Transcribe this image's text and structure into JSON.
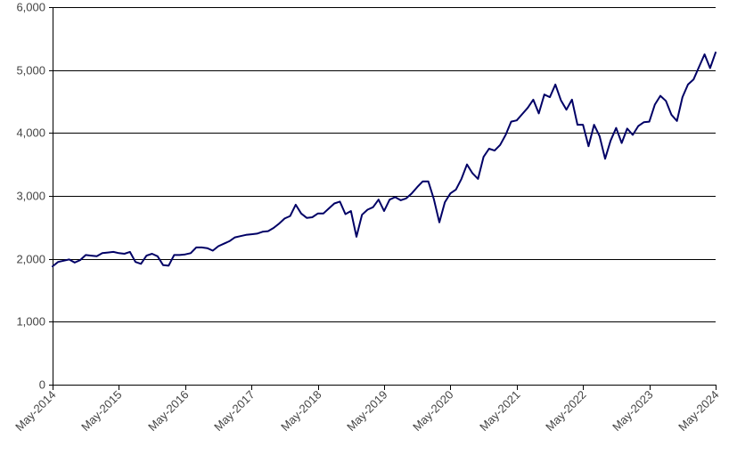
{
  "chart_data": {
    "type": "line",
    "title": "",
    "xlabel": "",
    "ylabel": "",
    "ylim": [
      0,
      6000
    ],
    "yticks": [
      0,
      1000,
      2000,
      3000,
      4000,
      5000,
      6000
    ],
    "ytick_labels": [
      "0",
      "1,000",
      "2,000",
      "3,000",
      "4,000",
      "5,000",
      "6,000"
    ],
    "xlim": [
      "2014-05",
      "2024-05"
    ],
    "xtick_labels": [
      "May-2014",
      "May-2015",
      "May-2016",
      "May-2017",
      "May-2018",
      "May-2019",
      "May-2020",
      "May-2021",
      "May-2022",
      "May-2023",
      "May-2024"
    ],
    "grid": "horizontal",
    "legend": "none",
    "colors": {
      "series": "#000066",
      "grid": "#000000"
    },
    "series": [
      {
        "x": [
          "2014-05",
          "2014-06",
          "2014-07",
          "2014-08",
          "2014-09",
          "2014-10",
          "2014-11",
          "2014-12",
          "2015-01",
          "2015-02",
          "2015-03",
          "2015-04",
          "2015-05",
          "2015-06",
          "2015-07",
          "2015-08",
          "2015-09",
          "2015-10",
          "2015-11",
          "2015-12",
          "2016-01",
          "2016-02",
          "2016-03",
          "2016-04",
          "2016-05",
          "2016-06",
          "2016-07",
          "2016-08",
          "2016-09",
          "2016-10",
          "2016-11",
          "2016-12",
          "2017-01",
          "2017-02",
          "2017-03",
          "2017-04",
          "2017-05",
          "2017-06",
          "2017-07",
          "2017-08",
          "2017-09",
          "2017-10",
          "2017-11",
          "2017-12",
          "2018-01",
          "2018-02",
          "2018-03",
          "2018-04",
          "2018-05",
          "2018-06",
          "2018-07",
          "2018-08",
          "2018-09",
          "2018-10",
          "2018-11",
          "2018-12",
          "2019-01",
          "2019-02",
          "2019-03",
          "2019-04",
          "2019-05",
          "2019-06",
          "2019-07",
          "2019-08",
          "2019-09",
          "2019-10",
          "2019-11",
          "2019-12",
          "2020-01",
          "2020-02",
          "2020-03",
          "2020-04",
          "2020-05",
          "2020-06",
          "2020-07",
          "2020-08",
          "2020-09",
          "2020-10",
          "2020-11",
          "2020-12",
          "2021-01",
          "2021-02",
          "2021-03",
          "2021-04",
          "2021-05",
          "2021-06",
          "2021-07",
          "2021-08",
          "2021-09",
          "2021-10",
          "2021-11",
          "2021-12",
          "2022-01",
          "2022-02",
          "2022-03",
          "2022-04",
          "2022-05",
          "2022-06",
          "2022-07",
          "2022-08",
          "2022-09",
          "2022-10",
          "2022-11",
          "2022-12",
          "2023-01",
          "2023-02",
          "2023-03",
          "2023-04",
          "2023-05",
          "2023-06",
          "2023-07",
          "2023-08",
          "2023-09",
          "2023-10",
          "2023-11",
          "2023-12",
          "2024-01",
          "2024-02",
          "2024-03",
          "2024-04",
          "2024-05"
        ],
        "values": [
          1880,
          1950,
          1970,
          1990,
          1940,
          1980,
          2060,
          2050,
          2040,
          2090,
          2100,
          2110,
          2090,
          2080,
          2110,
          1950,
          1920,
          2050,
          2080,
          2040,
          1900,
          1890,
          2060,
          2060,
          2070,
          2090,
          2180,
          2180,
          2170,
          2130,
          2200,
          2240,
          2280,
          2340,
          2360,
          2380,
          2390,
          2400,
          2430,
          2440,
          2490,
          2560,
          2640,
          2680,
          2860,
          2720,
          2650,
          2660,
          2720,
          2720,
          2800,
          2880,
          2910,
          2710,
          2760,
          2350,
          2700,
          2780,
          2820,
          2940,
          2760,
          2940,
          2980,
          2930,
          2960,
          3040,
          3140,
          3230,
          3230,
          2950,
          2580,
          2900,
          3040,
          3100,
          3270,
          3500,
          3360,
          3270,
          3620,
          3750,
          3720,
          3810,
          3970,
          4180,
          4200,
          4300,
          4400,
          4530,
          4310,
          4610,
          4570,
          4770,
          4520,
          4370,
          4530,
          4130,
          4130,
          3790,
          4130,
          3950,
          3590,
          3880,
          4080,
          3840,
          4070,
          3970,
          4110,
          4170,
          4180,
          4450,
          4590,
          4510,
          4290,
          4190,
          4570,
          4770,
          4850,
          5050,
          5250,
          5030,
          5280
        ]
      }
    ]
  }
}
